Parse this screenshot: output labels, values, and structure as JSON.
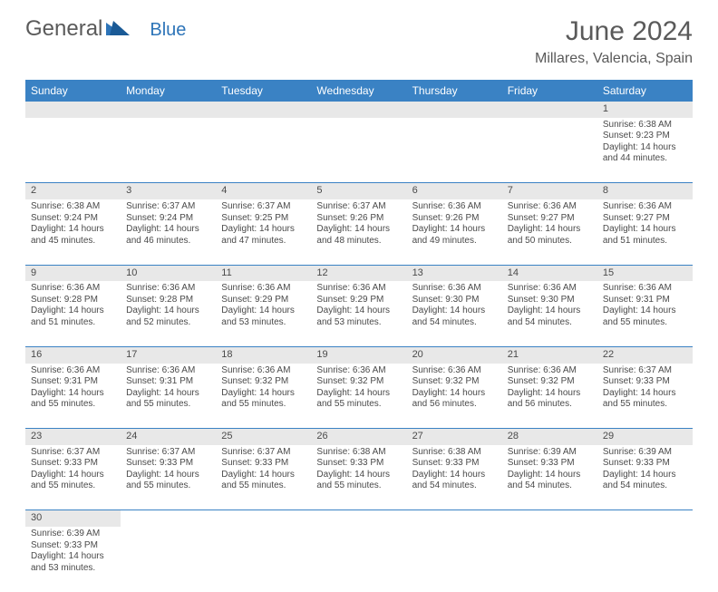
{
  "logo": {
    "text1": "General",
    "text2": "Blue"
  },
  "title": "June 2024",
  "location": "Millares, Valencia, Spain",
  "colors": {
    "header_bg": "#3a82c4",
    "header_text": "#ffffff",
    "daynum_bg": "#e8e8e8",
    "border": "#3a82c4",
    "body_text": "#4a4a4a",
    "logo_gray": "#5a5a5a",
    "logo_blue": "#2d74b8",
    "page_bg": "#ffffff"
  },
  "weekdays": [
    "Sunday",
    "Monday",
    "Tuesday",
    "Wednesday",
    "Thursday",
    "Friday",
    "Saturday"
  ],
  "weeks": [
    [
      null,
      null,
      null,
      null,
      null,
      null,
      {
        "n": "1",
        "sr": "Sunrise: 6:38 AM",
        "ss": "Sunset: 9:23 PM",
        "dl": "Daylight: 14 hours and 44 minutes."
      }
    ],
    [
      {
        "n": "2",
        "sr": "Sunrise: 6:38 AM",
        "ss": "Sunset: 9:24 PM",
        "dl": "Daylight: 14 hours and 45 minutes."
      },
      {
        "n": "3",
        "sr": "Sunrise: 6:37 AM",
        "ss": "Sunset: 9:24 PM",
        "dl": "Daylight: 14 hours and 46 minutes."
      },
      {
        "n": "4",
        "sr": "Sunrise: 6:37 AM",
        "ss": "Sunset: 9:25 PM",
        "dl": "Daylight: 14 hours and 47 minutes."
      },
      {
        "n": "5",
        "sr": "Sunrise: 6:37 AM",
        "ss": "Sunset: 9:26 PM",
        "dl": "Daylight: 14 hours and 48 minutes."
      },
      {
        "n": "6",
        "sr": "Sunrise: 6:36 AM",
        "ss": "Sunset: 9:26 PM",
        "dl": "Daylight: 14 hours and 49 minutes."
      },
      {
        "n": "7",
        "sr": "Sunrise: 6:36 AM",
        "ss": "Sunset: 9:27 PM",
        "dl": "Daylight: 14 hours and 50 minutes."
      },
      {
        "n": "8",
        "sr": "Sunrise: 6:36 AM",
        "ss": "Sunset: 9:27 PM",
        "dl": "Daylight: 14 hours and 51 minutes."
      }
    ],
    [
      {
        "n": "9",
        "sr": "Sunrise: 6:36 AM",
        "ss": "Sunset: 9:28 PM",
        "dl": "Daylight: 14 hours and 51 minutes."
      },
      {
        "n": "10",
        "sr": "Sunrise: 6:36 AM",
        "ss": "Sunset: 9:28 PM",
        "dl": "Daylight: 14 hours and 52 minutes."
      },
      {
        "n": "11",
        "sr": "Sunrise: 6:36 AM",
        "ss": "Sunset: 9:29 PM",
        "dl": "Daylight: 14 hours and 53 minutes."
      },
      {
        "n": "12",
        "sr": "Sunrise: 6:36 AM",
        "ss": "Sunset: 9:29 PM",
        "dl": "Daylight: 14 hours and 53 minutes."
      },
      {
        "n": "13",
        "sr": "Sunrise: 6:36 AM",
        "ss": "Sunset: 9:30 PM",
        "dl": "Daylight: 14 hours and 54 minutes."
      },
      {
        "n": "14",
        "sr": "Sunrise: 6:36 AM",
        "ss": "Sunset: 9:30 PM",
        "dl": "Daylight: 14 hours and 54 minutes."
      },
      {
        "n": "15",
        "sr": "Sunrise: 6:36 AM",
        "ss": "Sunset: 9:31 PM",
        "dl": "Daylight: 14 hours and 55 minutes."
      }
    ],
    [
      {
        "n": "16",
        "sr": "Sunrise: 6:36 AM",
        "ss": "Sunset: 9:31 PM",
        "dl": "Daylight: 14 hours and 55 minutes."
      },
      {
        "n": "17",
        "sr": "Sunrise: 6:36 AM",
        "ss": "Sunset: 9:31 PM",
        "dl": "Daylight: 14 hours and 55 minutes."
      },
      {
        "n": "18",
        "sr": "Sunrise: 6:36 AM",
        "ss": "Sunset: 9:32 PM",
        "dl": "Daylight: 14 hours and 55 minutes."
      },
      {
        "n": "19",
        "sr": "Sunrise: 6:36 AM",
        "ss": "Sunset: 9:32 PM",
        "dl": "Daylight: 14 hours and 55 minutes."
      },
      {
        "n": "20",
        "sr": "Sunrise: 6:36 AM",
        "ss": "Sunset: 9:32 PM",
        "dl": "Daylight: 14 hours and 56 minutes."
      },
      {
        "n": "21",
        "sr": "Sunrise: 6:36 AM",
        "ss": "Sunset: 9:32 PM",
        "dl": "Daylight: 14 hours and 56 minutes."
      },
      {
        "n": "22",
        "sr": "Sunrise: 6:37 AM",
        "ss": "Sunset: 9:33 PM",
        "dl": "Daylight: 14 hours and 55 minutes."
      }
    ],
    [
      {
        "n": "23",
        "sr": "Sunrise: 6:37 AM",
        "ss": "Sunset: 9:33 PM",
        "dl": "Daylight: 14 hours and 55 minutes."
      },
      {
        "n": "24",
        "sr": "Sunrise: 6:37 AM",
        "ss": "Sunset: 9:33 PM",
        "dl": "Daylight: 14 hours and 55 minutes."
      },
      {
        "n": "25",
        "sr": "Sunrise: 6:37 AM",
        "ss": "Sunset: 9:33 PM",
        "dl": "Daylight: 14 hours and 55 minutes."
      },
      {
        "n": "26",
        "sr": "Sunrise: 6:38 AM",
        "ss": "Sunset: 9:33 PM",
        "dl": "Daylight: 14 hours and 55 minutes."
      },
      {
        "n": "27",
        "sr": "Sunrise: 6:38 AM",
        "ss": "Sunset: 9:33 PM",
        "dl": "Daylight: 14 hours and 54 minutes."
      },
      {
        "n": "28",
        "sr": "Sunrise: 6:39 AM",
        "ss": "Sunset: 9:33 PM",
        "dl": "Daylight: 14 hours and 54 minutes."
      },
      {
        "n": "29",
        "sr": "Sunrise: 6:39 AM",
        "ss": "Sunset: 9:33 PM",
        "dl": "Daylight: 14 hours and 54 minutes."
      }
    ],
    [
      {
        "n": "30",
        "sr": "Sunrise: 6:39 AM",
        "ss": "Sunset: 9:33 PM",
        "dl": "Daylight: 14 hours and 53 minutes."
      },
      null,
      null,
      null,
      null,
      null,
      null
    ]
  ]
}
